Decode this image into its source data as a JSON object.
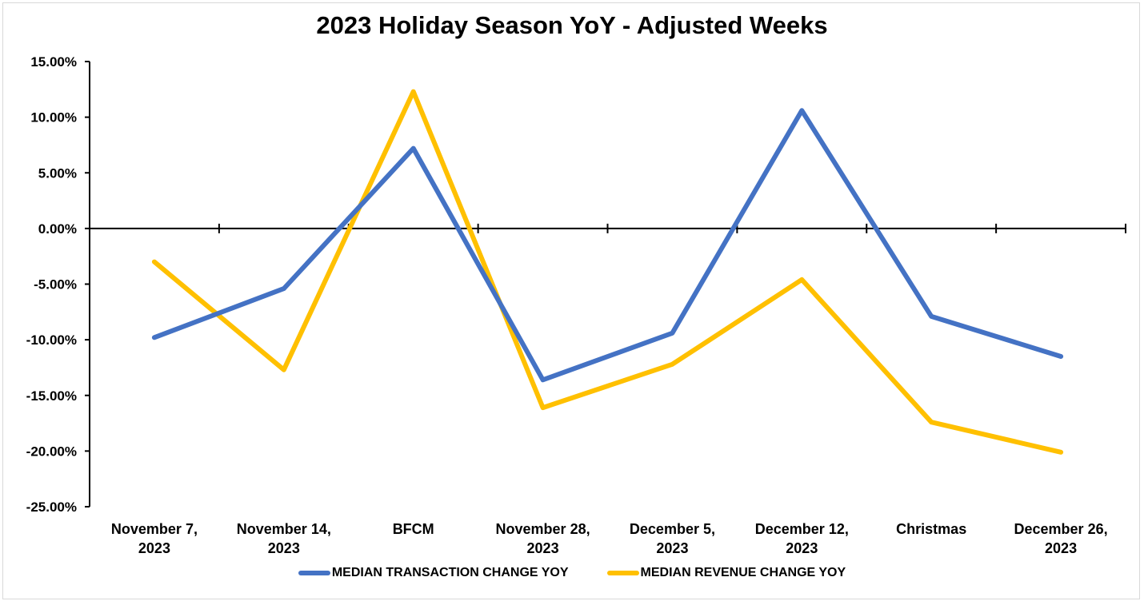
{
  "chart_data": {
    "type": "line",
    "title": "2023 Holiday Season YoY - Adjusted Weeks",
    "categories": [
      [
        "November 7,",
        "2023"
      ],
      [
        "November 14,",
        "2023"
      ],
      [
        "BFCM"
      ],
      [
        "November 28,",
        "2023"
      ],
      [
        "December 5,",
        "2023"
      ],
      [
        "December 12,",
        "2023"
      ],
      [
        "Christmas"
      ],
      [
        "December 26,",
        "2023"
      ]
    ],
    "series": [
      {
        "name": "MEDIAN TRANSACTION CHANGE YOY",
        "color": "#4472C4",
        "values": [
          -9.8,
          -5.4,
          7.2,
          -13.6,
          -9.4,
          10.6,
          -7.9,
          -11.5
        ]
      },
      {
        "name": "MEDIAN REVENUE CHANGE YOY",
        "color": "#FFC000",
        "values": [
          -3.0,
          -12.7,
          12.3,
          -16.1,
          -12.2,
          -4.6,
          -17.4,
          -20.1
        ]
      }
    ],
    "ylim": [
      -25,
      15
    ],
    "yticks": [
      15,
      10,
      5,
      0,
      -5,
      -10,
      -15,
      -20,
      -25
    ],
    "ytick_labels": [
      "15.00%",
      "10.00%",
      "5.00%",
      "0.00%",
      "-5.00%",
      "-10.00%",
      "-15.00%",
      "-20.00%",
      "-25.00%"
    ],
    "grid": false,
    "legend_position": "bottom"
  }
}
